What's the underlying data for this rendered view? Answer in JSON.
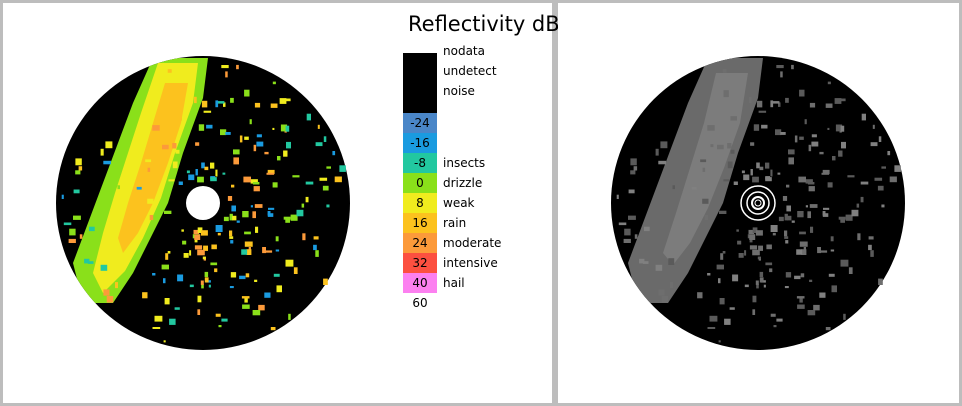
{
  "legend": {
    "title": "Reflectivity dB",
    "swatches": [
      {
        "color": "#000000",
        "label": "nodata"
      },
      {
        "color": "#000000",
        "label": "undetect"
      },
      {
        "color": "#000000",
        "label": "noise"
      },
      {
        "color": "#4a86c8",
        "value": "-24",
        "label": ""
      },
      {
        "color": "#1a9be0",
        "value": "-16",
        "label": ""
      },
      {
        "color": "#22c8a0",
        "value": "-8",
        "label": "insects"
      },
      {
        "color": "#8ae01a",
        "value": "0",
        "label": "drizzle"
      },
      {
        "color": "#f0ec1e",
        "value": "8",
        "label": "weak"
      },
      {
        "color": "#fcc21e",
        "value": "16",
        "label": "rain"
      },
      {
        "color": "#fc9a3a",
        "value": "24",
        "label": "moderate"
      },
      {
        "color": "#fc5040",
        "value": "32",
        "label": "intensive"
      },
      {
        "color": "#fc80f0",
        "value": "40",
        "label": "hail"
      },
      {
        "color": "#ffffff",
        "value": "60",
        "label": ""
      }
    ]
  },
  "colors": {
    "background_frame": "#bdbdbd",
    "radar_disc": "#000000",
    "echo_yellow": "#f0ec1e",
    "echo_green": "#8ae01a",
    "echo_orange": "#fc9a3a",
    "echo_gray": "#7a7a7a"
  }
}
